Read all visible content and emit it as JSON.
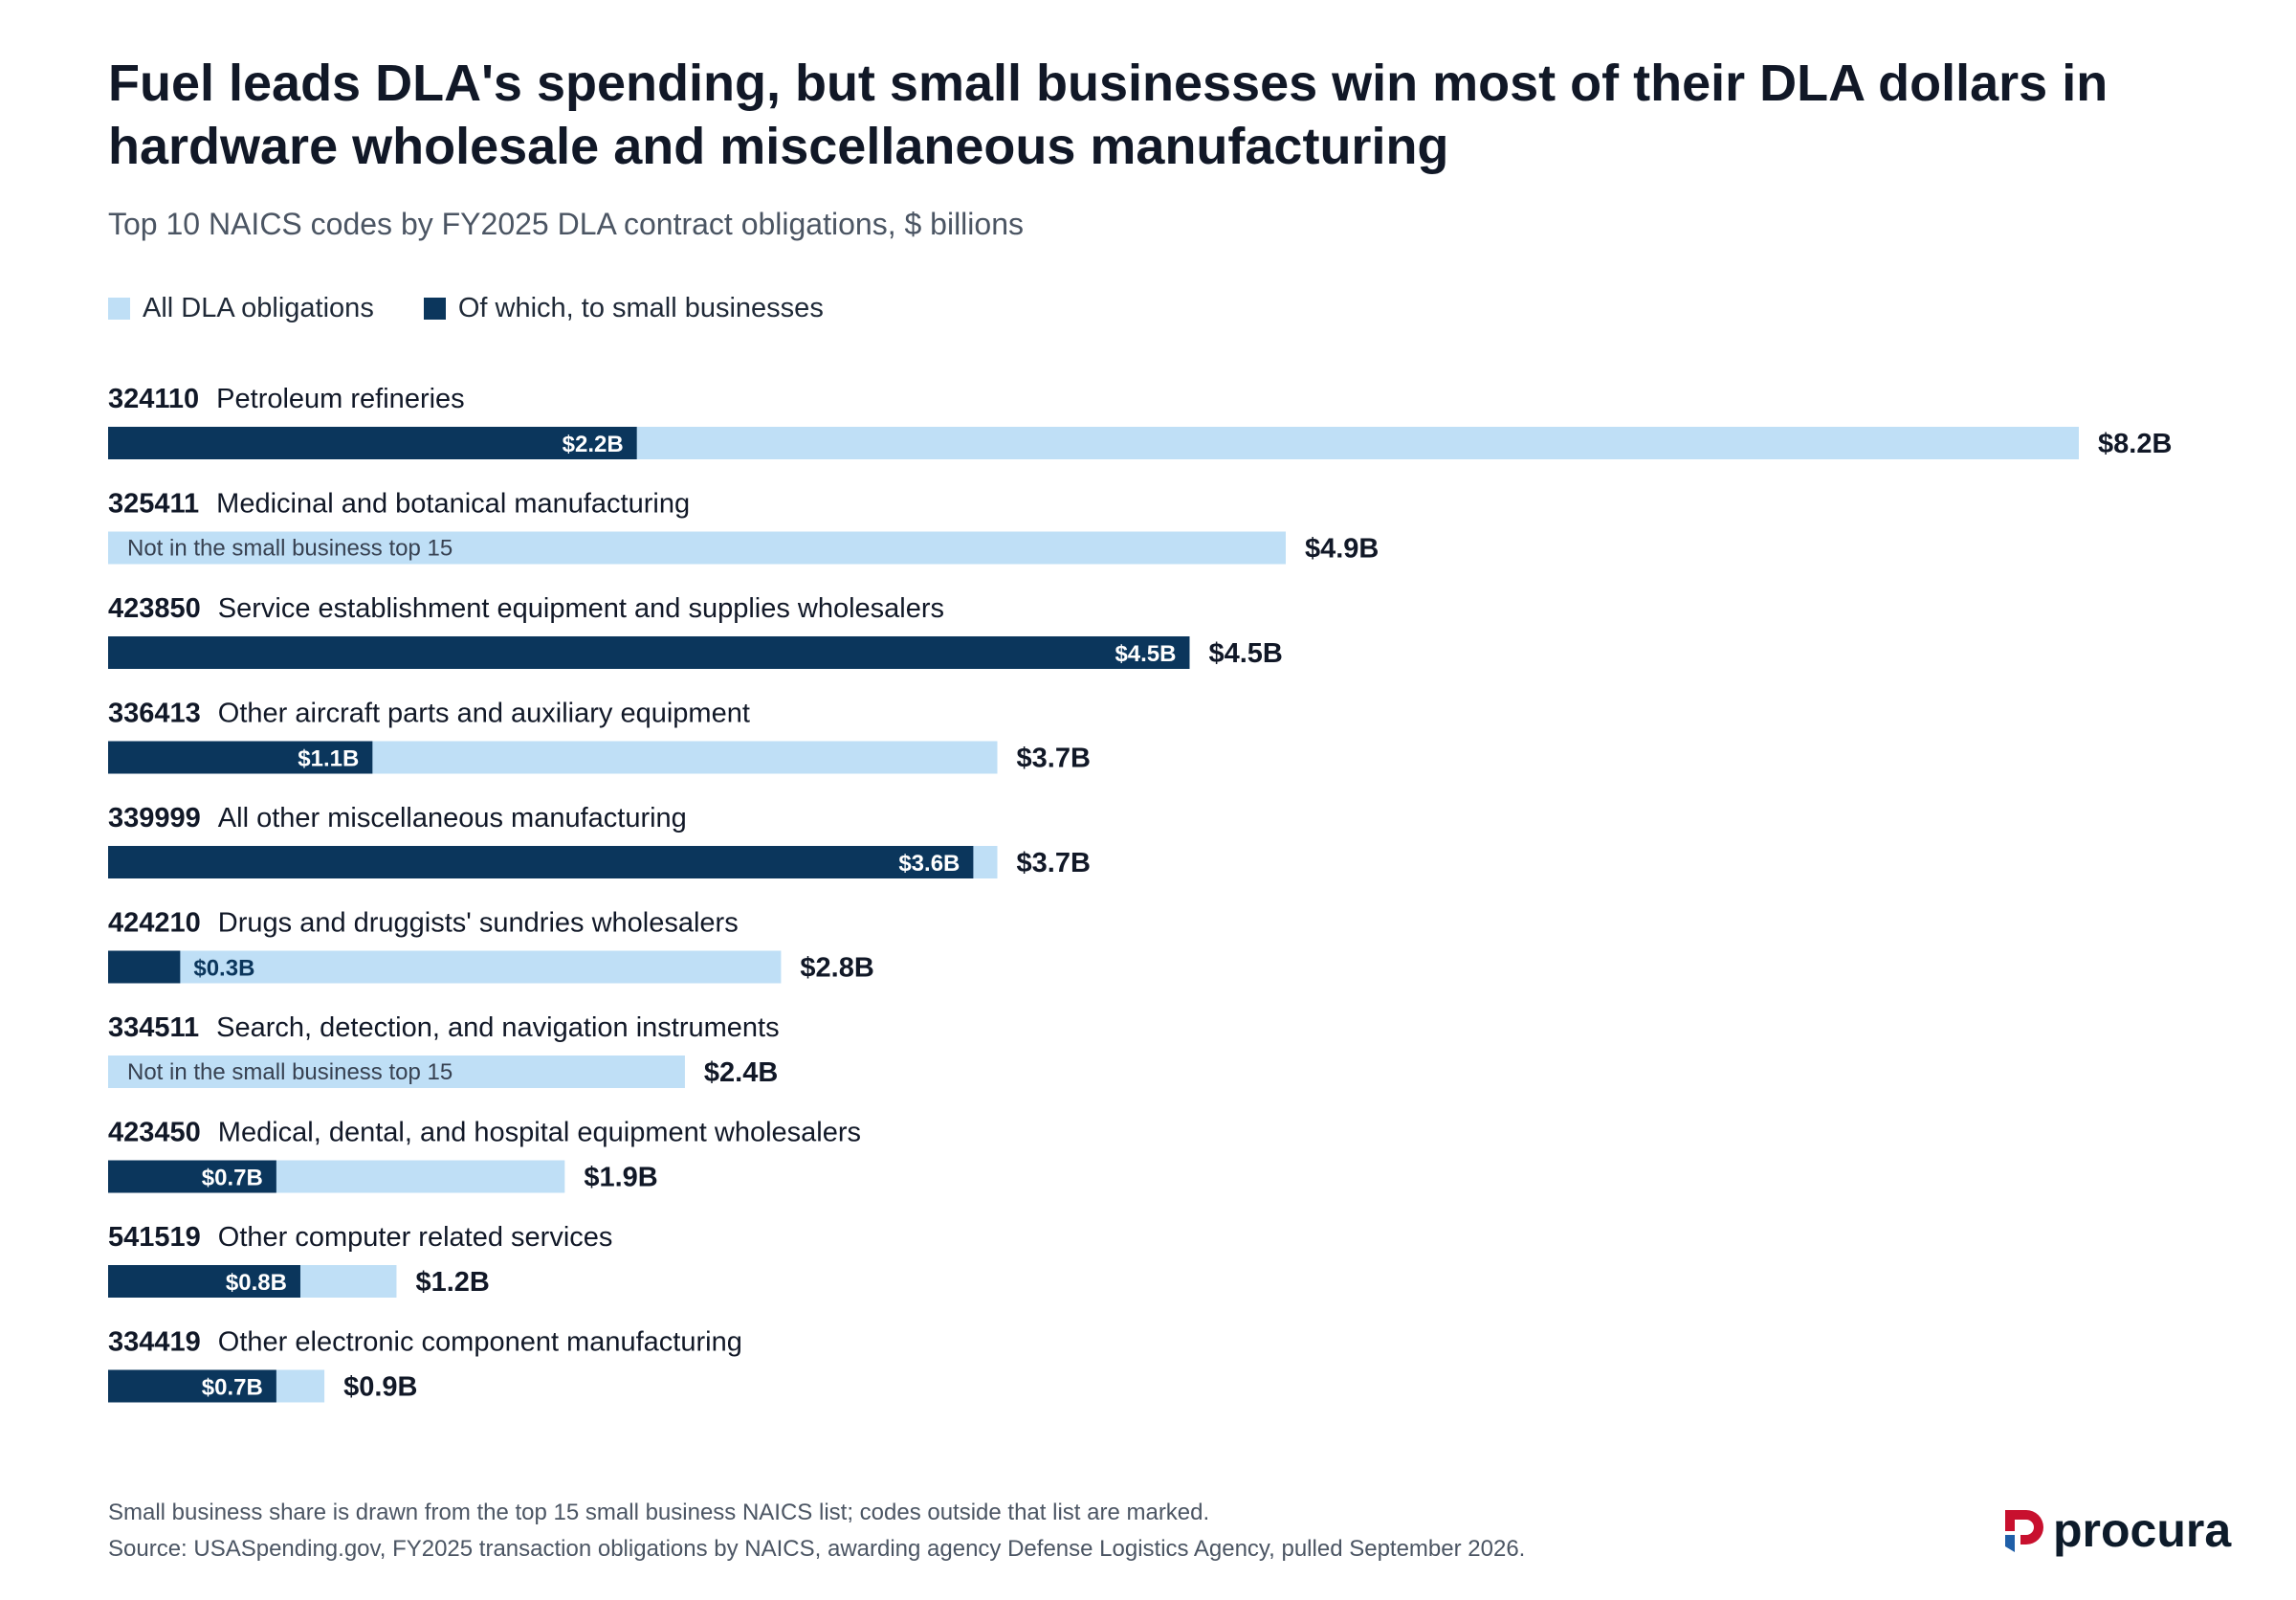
{
  "title": "Fuel leads DLA's spending, but small businesses win most of their DLA dollars in hardware wholesale and miscellaneous manufacturing",
  "subtitle": "Top 10 NAICS codes by FY2025 DLA contract obligations, $ billions",
  "legend": {
    "all_label": "All DLA obligations",
    "small_label": "Of which, to small businesses"
  },
  "colors": {
    "all": "#bfdff6",
    "small": "#0b365c",
    "label_dark": "#111827",
    "note_text": "#374151"
  },
  "footnote": {
    "line1": "Small business share is drawn from the top 15 small business NAICS list; codes outside that list are marked.",
    "line2": "Source: USASpending.gov, FY2025 transaction obligations by NAICS, awarding agency Defense Logistics Agency, pulled September 2026."
  },
  "logo": {
    "text": "procura",
    "mark_colors": [
      "#c8102e",
      "#1f5fa8"
    ]
  },
  "not_in_top_label": "Not in the small business top 15",
  "chart_data": {
    "type": "bar",
    "orientation": "horizontal",
    "unit": "$ billions",
    "xlim": [
      0,
      8.2
    ],
    "grid": false,
    "legend_position": "top-left",
    "series": [
      {
        "name": "All DLA obligations"
      },
      {
        "name": "Of which, to small businesses"
      }
    ],
    "categories": [
      {
        "code": "324110",
        "name": "Petroleum refineries",
        "all": 8.2,
        "all_label": "$8.2B",
        "small": 2.2,
        "small_label": "$2.2B"
      },
      {
        "code": "325411",
        "name": "Medicinal and botanical manufacturing",
        "all": 4.9,
        "all_label": "$4.9B",
        "small": null,
        "small_label": null
      },
      {
        "code": "423850",
        "name": "Service establishment equipment and supplies wholesalers",
        "all": 4.5,
        "all_label": "$4.5B",
        "small": 4.5,
        "small_label": "$4.5B"
      },
      {
        "code": "336413",
        "name": "Other aircraft parts and auxiliary equipment",
        "all": 3.7,
        "all_label": "$3.7B",
        "small": 1.1,
        "small_label": "$1.1B"
      },
      {
        "code": "339999",
        "name": "All other miscellaneous manufacturing",
        "all": 3.7,
        "all_label": "$3.7B",
        "small": 3.6,
        "small_label": "$3.6B"
      },
      {
        "code": "424210",
        "name": "Drugs and druggists' sundries wholesalers",
        "all": 2.8,
        "all_label": "$2.8B",
        "small": 0.3,
        "small_label": "$0.3B"
      },
      {
        "code": "334511",
        "name": "Search, detection, and navigation instruments",
        "all": 2.4,
        "all_label": "$2.4B",
        "small": null,
        "small_label": null
      },
      {
        "code": "423450",
        "name": "Medical, dental, and hospital equipment wholesalers",
        "all": 1.9,
        "all_label": "$1.9B",
        "small": 0.7,
        "small_label": "$0.7B"
      },
      {
        "code": "541519",
        "name": "Other computer related services",
        "all": 1.2,
        "all_label": "$1.2B",
        "small": 0.8,
        "small_label": "$0.8B"
      },
      {
        "code": "334419",
        "name": "Other electronic component manufacturing",
        "all": 0.9,
        "all_label": "$0.9B",
        "small": 0.7,
        "small_label": "$0.7B"
      }
    ]
  }
}
